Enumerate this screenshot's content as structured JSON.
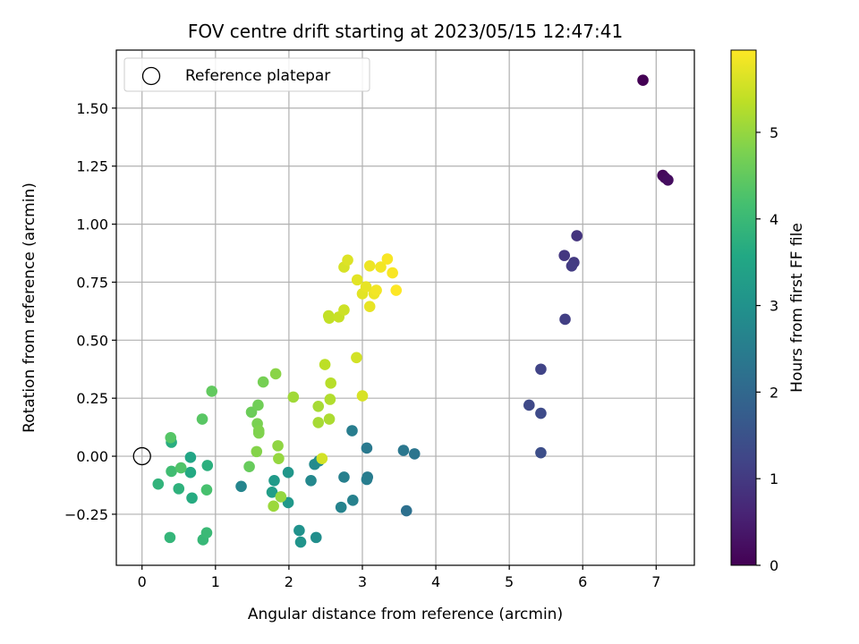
{
  "chart_data": {
    "type": "scatter",
    "title": "FOV centre drift starting at 2023/05/15 12:47:41",
    "xlabel": "Angular distance from reference (arcmin)",
    "ylabel": "Rotation from reference (arcmin)",
    "xlim": [
      -0.35,
      7.52
    ],
    "ylim": [
      -0.47,
      1.75
    ],
    "x_ticks": [
      0,
      1,
      2,
      3,
      4,
      5,
      6,
      7
    ],
    "x_tick_labels": [
      "0",
      "1",
      "2",
      "3",
      "4",
      "5",
      "6",
      "7"
    ],
    "y_ticks": [
      -0.25,
      0.0,
      0.25,
      0.5,
      0.75,
      1.0,
      1.25,
      1.5
    ],
    "y_tick_labels": [
      "−0.25",
      "0.00",
      "0.25",
      "0.50",
      "0.75",
      "1.00",
      "1.25",
      "1.50"
    ],
    "grid": true,
    "legend": {
      "position": "top-left",
      "entries": [
        {
          "label": "Reference platepar",
          "marker": "open-circle"
        }
      ]
    },
    "reference_point": {
      "x": 0,
      "y": 0
    },
    "colorbar": {
      "label": "Hours from first FF file",
      "colormap": "viridis",
      "range": [
        0,
        5.95
      ],
      "ticks": [
        0,
        1,
        2,
        3,
        4,
        5
      ],
      "tick_labels": [
        "0",
        "1",
        "2",
        "3",
        "4",
        "5"
      ]
    },
    "points": [
      {
        "x": 6.82,
        "y": 1.62,
        "c": 0.0
      },
      {
        "x": 7.09,
        "y": 1.21,
        "c": 0.1
      },
      {
        "x": 7.12,
        "y": 1.2,
        "c": 0.15
      },
      {
        "x": 7.16,
        "y": 1.19,
        "c": 0.2
      },
      {
        "x": 5.92,
        "y": 0.95,
        "c": 0.9
      },
      {
        "x": 5.75,
        "y": 0.865,
        "c": 0.95
      },
      {
        "x": 5.88,
        "y": 0.835,
        "c": 1.0
      },
      {
        "x": 5.85,
        "y": 0.82,
        "c": 1.05
      },
      {
        "x": 5.76,
        "y": 0.59,
        "c": 1.1
      },
      {
        "x": 5.43,
        "y": 0.375,
        "c": 1.2
      },
      {
        "x": 5.27,
        "y": 0.22,
        "c": 1.3
      },
      {
        "x": 5.43,
        "y": 0.185,
        "c": 1.35
      },
      {
        "x": 5.43,
        "y": 0.015,
        "c": 1.4
      },
      {
        "x": 3.6,
        "y": -0.235,
        "c": 2.2
      },
      {
        "x": 3.71,
        "y": 0.01,
        "c": 2.3
      },
      {
        "x": 3.56,
        "y": 0.025,
        "c": 2.35
      },
      {
        "x": 3.06,
        "y": 0.035,
        "c": 2.4
      },
      {
        "x": 3.07,
        "y": -0.09,
        "c": 2.45
      },
      {
        "x": 3.06,
        "y": -0.1,
        "c": 2.5
      },
      {
        "x": 2.86,
        "y": 0.11,
        "c": 2.5
      },
      {
        "x": 2.75,
        "y": -0.09,
        "c": 2.55
      },
      {
        "x": 2.87,
        "y": -0.19,
        "c": 2.6
      },
      {
        "x": 2.71,
        "y": -0.22,
        "c": 2.65
      },
      {
        "x": 1.35,
        "y": -0.13,
        "c": 2.7
      },
      {
        "x": 2.3,
        "y": -0.105,
        "c": 2.75
      },
      {
        "x": 2.35,
        "y": -0.035,
        "c": 2.8
      },
      {
        "x": 2.41,
        "y": -0.02,
        "c": 2.85
      },
      {
        "x": 2.37,
        "y": -0.35,
        "c": 2.9
      },
      {
        "x": 2.14,
        "y": -0.32,
        "c": 3.0
      },
      {
        "x": 2.16,
        "y": -0.37,
        "c": 3.05
      },
      {
        "x": 1.99,
        "y": -0.07,
        "c": 3.1
      },
      {
        "x": 1.99,
        "y": -0.2,
        "c": 3.15
      },
      {
        "x": 1.8,
        "y": -0.105,
        "c": 3.2
      },
      {
        "x": 1.77,
        "y": -0.155,
        "c": 3.3
      },
      {
        "x": 0.66,
        "y": -0.005,
        "c": 3.5
      },
      {
        "x": 0.66,
        "y": -0.07,
        "c": 3.6
      },
      {
        "x": 0.68,
        "y": -0.18,
        "c": 3.65
      },
      {
        "x": 0.4,
        "y": 0.06,
        "c": 3.7
      },
      {
        "x": 0.89,
        "y": -0.04,
        "c": 3.75
      },
      {
        "x": 0.5,
        "y": -0.14,
        "c": 3.8
      },
      {
        "x": 0.22,
        "y": -0.12,
        "c": 3.85
      },
      {
        "x": 0.38,
        "y": -0.35,
        "c": 3.9
      },
      {
        "x": 0.83,
        "y": -0.36,
        "c": 3.95
      },
      {
        "x": 0.88,
        "y": -0.33,
        "c": 4.0
      },
      {
        "x": 0.4,
        "y": -0.065,
        "c": 4.1
      },
      {
        "x": 0.88,
        "y": -0.145,
        "c": 4.2
      },
      {
        "x": 0.53,
        "y": -0.05,
        "c": 4.3
      },
      {
        "x": 0.39,
        "y": 0.08,
        "c": 4.35
      },
      {
        "x": 0.82,
        "y": 0.16,
        "c": 4.4
      },
      {
        "x": 0.95,
        "y": 0.28,
        "c": 4.5
      },
      {
        "x": 1.46,
        "y": -0.045,
        "c": 4.55
      },
      {
        "x": 1.49,
        "y": 0.19,
        "c": 4.6
      },
      {
        "x": 1.58,
        "y": 0.22,
        "c": 4.65
      },
      {
        "x": 1.65,
        "y": 0.32,
        "c": 4.7
      },
      {
        "x": 1.57,
        "y": 0.14,
        "c": 4.75
      },
      {
        "x": 1.59,
        "y": 0.11,
        "c": 4.8
      },
      {
        "x": 1.59,
        "y": 0.1,
        "c": 4.8
      },
      {
        "x": 1.56,
        "y": 0.02,
        "c": 4.85
      },
      {
        "x": 1.82,
        "y": 0.355,
        "c": 4.9
      },
      {
        "x": 1.85,
        "y": 0.045,
        "c": 4.95
      },
      {
        "x": 1.86,
        "y": -0.01,
        "c": 5.0
      },
      {
        "x": 1.89,
        "y": -0.175,
        "c": 5.0
      },
      {
        "x": 1.79,
        "y": -0.215,
        "c": 5.05
      },
      {
        "x": 2.06,
        "y": 0.255,
        "c": 5.1
      },
      {
        "x": 2.4,
        "y": 0.215,
        "c": 5.15
      },
      {
        "x": 2.4,
        "y": 0.145,
        "c": 5.15
      },
      {
        "x": 2.55,
        "y": 0.16,
        "c": 5.2
      },
      {
        "x": 2.56,
        "y": 0.245,
        "c": 5.25
      },
      {
        "x": 2.57,
        "y": 0.315,
        "c": 5.3
      },
      {
        "x": 2.49,
        "y": 0.395,
        "c": 5.35
      },
      {
        "x": 2.54,
        "y": 0.605,
        "c": 5.4
      },
      {
        "x": 2.55,
        "y": 0.595,
        "c": 5.4
      },
      {
        "x": 2.68,
        "y": 0.6,
        "c": 5.45
      },
      {
        "x": 2.75,
        "y": 0.63,
        "c": 5.5
      },
      {
        "x": 2.45,
        "y": -0.01,
        "c": 5.55
      },
      {
        "x": 2.92,
        "y": 0.425,
        "c": 5.55
      },
      {
        "x": 3.0,
        "y": 0.26,
        "c": 5.6
      },
      {
        "x": 2.75,
        "y": 0.815,
        "c": 5.6
      },
      {
        "x": 2.8,
        "y": 0.845,
        "c": 5.65
      },
      {
        "x": 2.93,
        "y": 0.76,
        "c": 5.7
      },
      {
        "x": 3.0,
        "y": 0.7,
        "c": 5.7
      },
      {
        "x": 3.05,
        "y": 0.73,
        "c": 5.75
      },
      {
        "x": 3.1,
        "y": 0.645,
        "c": 5.75
      },
      {
        "x": 3.1,
        "y": 0.82,
        "c": 5.8
      },
      {
        "x": 3.16,
        "y": 0.7,
        "c": 5.8
      },
      {
        "x": 3.19,
        "y": 0.715,
        "c": 5.85
      },
      {
        "x": 3.25,
        "y": 0.815,
        "c": 5.85
      },
      {
        "x": 3.34,
        "y": 0.85,
        "c": 5.9
      },
      {
        "x": 3.41,
        "y": 0.79,
        "c": 5.9
      },
      {
        "x": 3.46,
        "y": 0.715,
        "c": 5.95
      }
    ]
  }
}
